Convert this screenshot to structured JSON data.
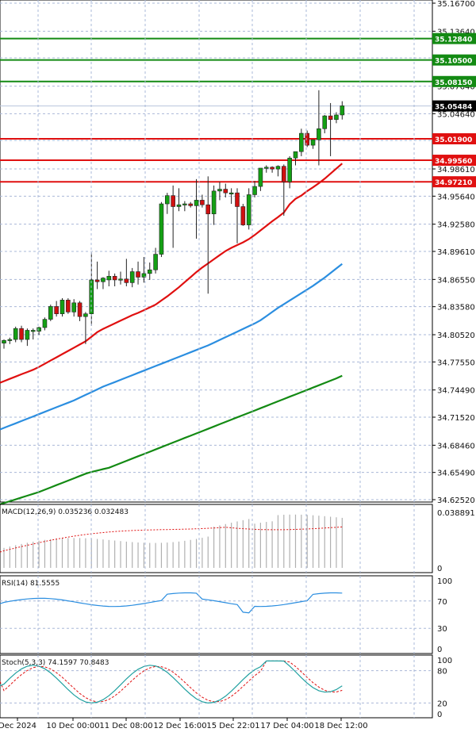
{
  "chart_data": [
    {
      "type": "candlestick",
      "panel": "price",
      "ylim": [
        34.6252,
        35.167
      ],
      "y_ticks": [
        "35.16700",
        "35.13640",
        "35.10730",
        "35.07640",
        "35.04640",
        "35.01720",
        "34.98610",
        "34.95640",
        "34.92580",
        "34.89610",
        "34.86550",
        "34.83580",
        "34.80520",
        "34.77550",
        "34.74490",
        "34.71520",
        "34.68460",
        "34.65490",
        "34.62520"
      ],
      "x_labels": [
        "Dec 2024",
        "10 Dec 00:00",
        "11 Dec 08:00",
        "12 Dec 16:00",
        "15 Dec 22:01",
        "17 Dec 04:00",
        "18 Dec 12:00"
      ],
      "current_price": {
        "value": 35.05484,
        "label": "35.05484",
        "color": "#000000"
      },
      "levels": [
        {
          "value": 35.1284,
          "label": "35.12840",
          "color": "#138a13"
        },
        {
          "value": 35.105,
          "label": "35.10500",
          "color": "#138a13"
        },
        {
          "value": 35.0815,
          "label": "35.08150",
          "color": "#138a13"
        },
        {
          "value": 35.019,
          "label": "35.01900",
          "color": "#e01010"
        },
        {
          "value": 34.9956,
          "label": "34.99560",
          "color": "#e01010"
        },
        {
          "value": 34.9721,
          "label": "34.97210",
          "color": "#e01010"
        }
      ],
      "candles": [
        [
          34.796,
          34.8,
          34.79,
          34.799
        ],
        [
          34.799,
          34.802,
          34.795,
          34.8
        ],
        [
          34.8,
          34.814,
          34.797,
          34.812
        ],
        [
          34.812,
          34.815,
          34.797,
          34.8
        ],
        [
          34.8,
          34.812,
          34.793,
          34.81
        ],
        [
          34.81,
          34.812,
          34.8,
          34.81
        ],
        [
          34.809,
          34.814,
          34.805,
          34.813
        ],
        [
          34.813,
          34.824,
          34.81,
          34.822
        ],
        [
          34.822,
          34.838,
          34.82,
          34.836
        ],
        [
          34.836,
          34.842,
          34.825,
          34.828
        ],
        [
          34.828,
          34.845,
          34.825,
          34.843
        ],
        [
          34.843,
          34.845,
          34.828,
          34.83
        ],
        [
          34.83,
          34.844,
          34.825,
          34.84
        ],
        [
          34.84,
          34.842,
          34.82,
          34.825
        ],
        [
          34.825,
          34.83,
          34.795,
          34.828
        ],
        [
          34.828,
          34.895,
          34.815,
          34.865
        ],
        [
          34.865,
          34.885,
          34.855,
          34.863
        ],
        [
          34.863,
          34.868,
          34.855,
          34.867
        ],
        [
          34.865,
          34.875,
          34.858,
          34.869
        ],
        [
          34.869,
          34.872,
          34.858,
          34.865
        ],
        [
          34.865,
          34.874,
          34.86,
          34.866
        ],
        [
          34.866,
          34.888,
          34.858,
          34.862
        ],
        [
          34.862,
          34.878,
          34.857,
          34.874
        ],
        [
          34.874,
          34.885,
          34.86,
          34.868
        ],
        [
          34.868,
          34.89,
          34.862,
          34.872
        ],
        [
          34.872,
          34.884,
          34.865,
          34.876
        ],
        [
          34.876,
          34.9,
          34.872,
          34.893
        ],
        [
          34.893,
          34.95,
          34.89,
          34.948
        ],
        [
          34.948,
          34.96,
          34.937,
          34.957
        ],
        [
          34.957,
          34.968,
          34.9,
          34.945
        ],
        [
          34.945,
          34.965,
          34.94,
          34.947
        ],
        [
          34.947,
          34.951,
          34.94,
          34.948
        ],
        [
          34.948,
          34.95,
          34.944,
          34.946
        ],
        [
          34.946,
          34.975,
          34.91,
          34.952
        ],
        [
          34.952,
          34.958,
          34.944,
          34.947
        ],
        [
          34.947,
          34.978,
          34.85,
          34.937
        ],
        [
          34.937,
          34.968,
          34.925,
          34.962
        ],
        [
          34.962,
          34.972,
          34.952,
          34.964
        ],
        [
          34.964,
          34.97,
          34.955,
          34.96
        ],
        [
          34.96,
          34.965,
          34.948,
          34.96
        ],
        [
          34.96,
          34.965,
          34.905,
          34.945
        ],
        [
          34.945,
          34.948,
          34.924,
          34.925
        ],
        [
          34.925,
          34.965,
          34.92,
          34.958
        ],
        [
          34.958,
          34.973,
          34.955,
          34.967
        ],
        [
          34.967,
          34.987,
          34.962,
          34.987
        ],
        [
          34.987,
          34.99,
          34.982,
          34.988
        ],
        [
          34.988,
          34.989,
          34.982,
          34.986
        ],
        [
          34.986,
          34.99,
          34.978,
          34.989
        ],
        [
          34.989,
          34.991,
          34.935,
          34.972
        ],
        [
          34.972,
          35.0,
          34.965,
          34.998
        ],
        [
          34.998,
          35.005,
          34.99,
          35.005
        ],
        [
          35.005,
          35.03,
          35.0,
          35.025
        ],
        [
          35.025,
          35.028,
          35.01,
          35.012
        ],
        [
          35.012,
          35.018,
          35.008,
          35.018
        ],
        [
          35.018,
          35.072,
          34.99,
          35.03
        ],
        [
          35.03,
          35.045,
          35.025,
          35.044
        ],
        [
          35.044,
          35.058,
          35.0,
          35.04
        ],
        [
          35.04,
          35.048,
          35.036,
          35.045
        ],
        [
          35.045,
          35.06,
          35.04,
          35.055
        ]
      ],
      "ma_series": [
        {
          "color": "#e01010",
          "values": [
            34.7545,
            34.757,
            34.7595,
            34.762,
            34.7645,
            34.767,
            34.77,
            34.7735,
            34.777,
            34.7805,
            34.784,
            34.7875,
            34.791,
            34.7945,
            34.798,
            34.803,
            34.808,
            34.8115,
            34.8145,
            34.8175,
            34.8205,
            34.8235,
            34.8265,
            34.829,
            34.832,
            34.835,
            34.838,
            34.8425,
            34.847,
            34.852,
            34.857,
            34.8625,
            34.868,
            34.8735,
            34.8785,
            34.883,
            34.8875,
            34.892,
            34.8965,
            34.9,
            34.903,
            34.906,
            34.9095,
            34.914,
            34.919,
            34.924,
            34.929,
            34.9335,
            34.9385,
            34.9475,
            34.9535,
            34.957,
            34.962,
            34.966,
            34.9705,
            34.9755,
            34.981,
            34.9865,
            34.992
          ]
        },
        {
          "color": "#2b8ee0",
          "values": [
            34.7035,
            34.706,
            34.7085,
            34.711,
            34.7135,
            34.716,
            34.7185,
            34.721,
            34.7235,
            34.726,
            34.7285,
            34.731,
            34.7335,
            34.7365,
            34.7395,
            34.7425,
            34.7455,
            34.7485,
            34.751,
            34.7535,
            34.756,
            34.7585,
            34.761,
            34.7635,
            34.766,
            34.7685,
            34.771,
            34.7735,
            34.776,
            34.7785,
            34.781,
            34.7835,
            34.786,
            34.7885,
            34.791,
            34.7935,
            34.7965,
            34.7995,
            34.8025,
            34.8055,
            34.8085,
            34.8115,
            34.8145,
            34.8175,
            34.821,
            34.8255,
            34.83,
            34.8345,
            34.8385,
            34.8425,
            34.8465,
            34.8505,
            34.8545,
            34.8585,
            34.863,
            34.8675,
            34.8725,
            34.8775,
            34.8825
          ]
        },
        {
          "color": "#138a13",
          "values": [
            34.6215,
            34.6235,
            34.6255,
            34.6275,
            34.6295,
            34.6315,
            34.6335,
            34.636,
            34.6385,
            34.641,
            34.6435,
            34.646,
            34.6485,
            34.651,
            34.6535,
            34.6555,
            34.657,
            34.6585,
            34.66,
            34.6625,
            34.665,
            34.6675,
            34.67,
            34.6725,
            34.675,
            34.6775,
            34.68,
            34.6825,
            34.685,
            34.6875,
            34.69,
            34.6925,
            34.695,
            34.6975,
            34.7,
            34.7025,
            34.705,
            34.7075,
            34.71,
            34.7125,
            34.715,
            34.7175,
            34.72,
            34.7225,
            34.725,
            34.7275,
            34.73,
            34.7325,
            34.735,
            34.7375,
            34.74,
            34.7425,
            34.745,
            34.7475,
            34.75,
            34.7525,
            34.755,
            34.7575,
            34.7605
          ]
        }
      ]
    },
    {
      "type": "bar",
      "panel": "macd",
      "title": "MACD(12,26,9) 0.035236 0.032483",
      "y_ticks": [
        "0.038891",
        "0"
      ],
      "ylim": [
        0,
        0.038891
      ]
    },
    {
      "type": "line",
      "panel": "rsi",
      "title": "RSI(14) 81.5555",
      "y_ticks": [
        "100",
        "70",
        "30",
        "0"
      ],
      "ylim": [
        0,
        100
      ]
    },
    {
      "type": "line",
      "panel": "stoch",
      "title": "Stoch(5,3,3) 74.1597 70.8483",
      "y_ticks": [
        "100",
        "80",
        "20",
        "0"
      ],
      "ylim": [
        0,
        100
      ]
    }
  ]
}
